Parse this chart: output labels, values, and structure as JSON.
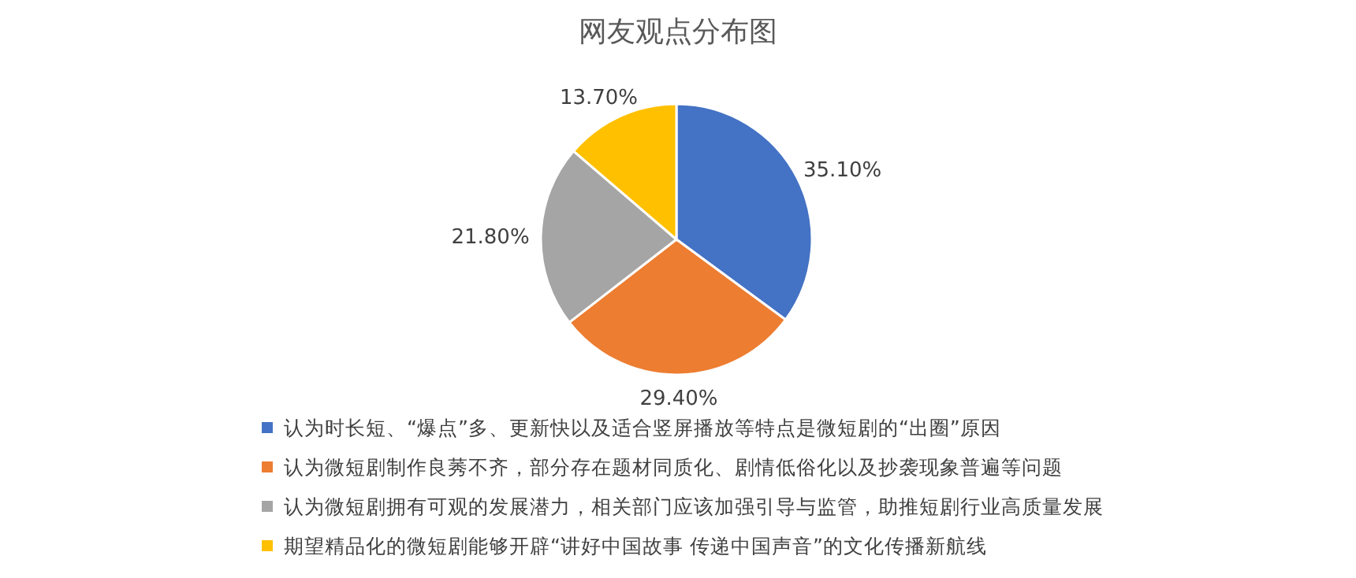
{
  "chart_data": {
    "type": "pie",
    "title": "网友观点分布图",
    "categories": [
      "认为时长短、“爆点”多、更新快以及适合竖屏播放等特点是微短剧的“出圈”原因",
      "认为微短剧制作良莠不齐，部分存在题材同质化、剧情低俗化以及抄袭现象普遍等问题",
      "认为微短剧拥有可观的发展潜力，相关部门应该加强引导与监管，助推短剧行业高质量发展",
      "期望精品化的微短剧能够开辟“讲好中国故事 传递中国声音”的文化传播新航线"
    ],
    "values": [
      35.1,
      29.4,
      21.8,
      13.7
    ],
    "colors": [
      "#4472c4",
      "#ed7d31",
      "#a5a5a5",
      "#ffc000"
    ],
    "value_labels": [
      "35.10%",
      "29.40%",
      "21.80%",
      "13.70%"
    ],
    "legend": "bottom"
  }
}
